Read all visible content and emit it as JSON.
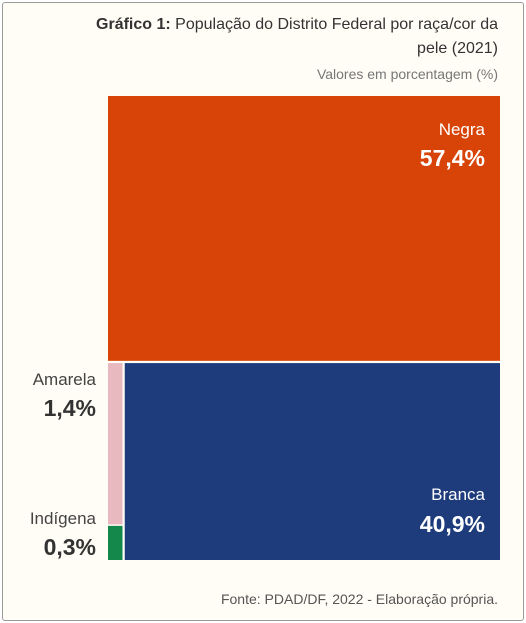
{
  "header": {
    "title_bold": "Gráfico 1:",
    "title_rest": "População do Distrito Federal por raça/cor da pele (2021)",
    "subtitle": "Valores em porcentagem (%)"
  },
  "footer": {
    "source": "Fonte: PDAD/DF, 2022 - Elaboração própria."
  },
  "colors": {
    "negra": "#d84407",
    "branca": "#1e3c7c",
    "amarela": "#e8b9bf",
    "indigena": "#14884a"
  },
  "chart_data": {
    "type": "treemap",
    "title": "Gráfico 1: População do Distrito Federal por raça/cor da pele (2021)",
    "unit": "%",
    "categories": [
      "Negra",
      "Branca",
      "Amarela",
      "Indígena"
    ],
    "values": [
      57.4,
      40.9,
      1.4,
      0.3
    ],
    "value_labels": [
      "57,4%",
      "40,9%",
      "1,4%",
      "0,3%"
    ],
    "colors": [
      "#d84407",
      "#1e3c7c",
      "#e8b9bf",
      "#14884a"
    ]
  }
}
